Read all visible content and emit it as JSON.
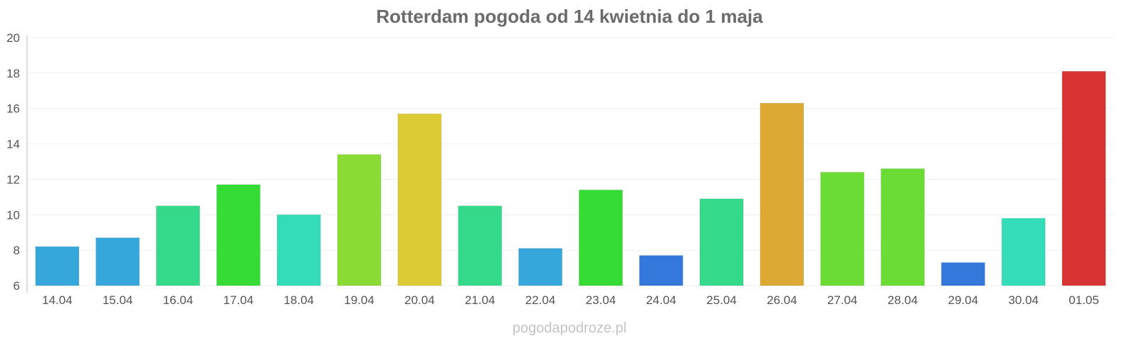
{
  "chart_data": {
    "type": "bar",
    "title": "Rotterdam pogoda od 14 kwietnia do 1 maja",
    "xlabel": "",
    "ylabel": "",
    "ylim": [
      6,
      20
    ],
    "yticks": [
      "6",
      "8",
      "10",
      "12",
      "14",
      "16",
      "18",
      "20"
    ],
    "grid": true,
    "categories": [
      "14.04",
      "15.04",
      "16.04",
      "17.04",
      "18.04",
      "19.04",
      "20.04",
      "21.04",
      "22.04",
      "23.04",
      "24.04",
      "25.04",
      "26.04",
      "27.04",
      "28.04",
      "29.04",
      "30.04",
      "01.05"
    ],
    "values": [
      8.2,
      8.7,
      10.5,
      11.7,
      10.0,
      13.4,
      15.7,
      10.5,
      8.1,
      11.4,
      7.7,
      10.9,
      16.3,
      12.4,
      12.6,
      7.3,
      9.8,
      18.1
    ],
    "colors": [
      "#36a7db",
      "#36a7db",
      "#34d98a",
      "#34dc34",
      "#34dcb8",
      "#8adc34",
      "#dccb34",
      "#34d98a",
      "#36a7db",
      "#34dc34",
      "#3578db",
      "#34d98a",
      "#dcaa34",
      "#6adc34",
      "#6adc34",
      "#3578db",
      "#34dcb8",
      "#d93434"
    ]
  },
  "footer": {
    "watermark": "pogodapodroze.pl"
  }
}
